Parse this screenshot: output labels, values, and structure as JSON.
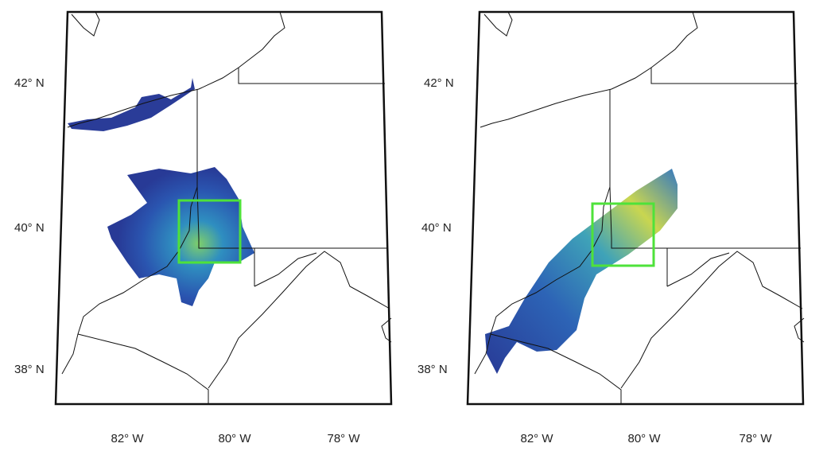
{
  "panels": [
    {
      "lat_labels": [
        "42° N",
        "40° N",
        "38° N"
      ],
      "lon_labels": [
        "82° W",
        "80° W",
        "78° W"
      ]
    },
    {
      "lat_labels": [
        "42° N",
        "40° N",
        "38° N"
      ],
      "lon_labels": [
        "82° W",
        "80° W",
        "78° W"
      ]
    }
  ]
}
